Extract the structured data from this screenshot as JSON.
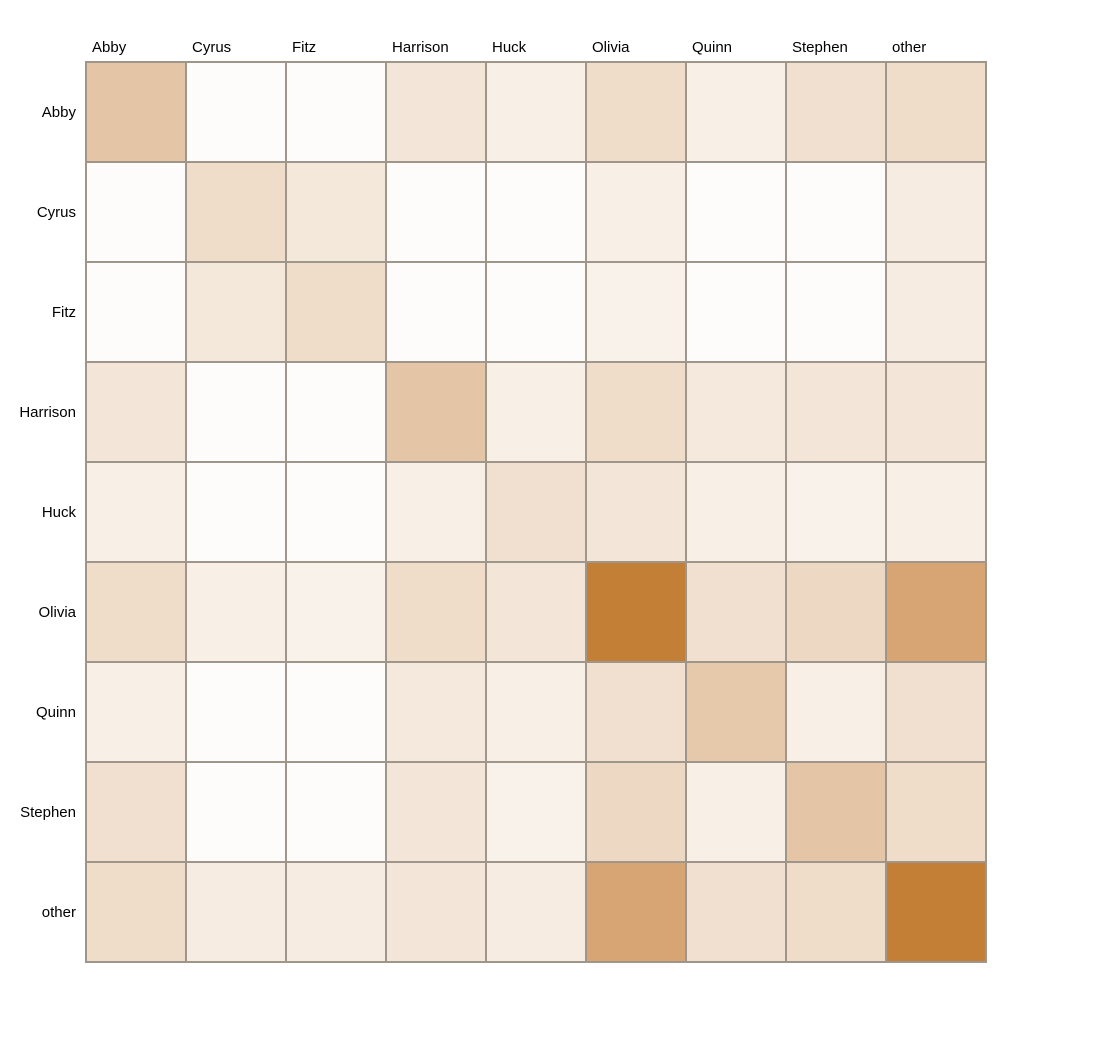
{
  "chart_data": {
    "type": "heatmap",
    "rows": [
      "Abby",
      "Cyrus",
      "Fitz",
      "Harrison",
      "Huck",
      "Olivia",
      "Quinn",
      "Stephen",
      "other"
    ],
    "columns": [
      "Abby",
      "Cyrus",
      "Fitz",
      "Harrison",
      "Huck",
      "Olivia",
      "Quinn",
      "Stephen",
      "other"
    ],
    "values": [
      [
        0.45,
        0.0,
        0.0,
        0.2,
        0.12,
        0.27,
        0.12,
        0.24,
        0.27
      ],
      [
        0.0,
        0.27,
        0.18,
        0.0,
        0.0,
        0.12,
        0.0,
        0.0,
        0.15
      ],
      [
        0.0,
        0.18,
        0.27,
        0.0,
        0.0,
        0.1,
        0.0,
        0.0,
        0.15
      ],
      [
        0.2,
        0.0,
        0.0,
        0.45,
        0.12,
        0.27,
        0.17,
        0.2,
        0.2
      ],
      [
        0.12,
        0.0,
        0.0,
        0.12,
        0.24,
        0.2,
        0.12,
        0.1,
        0.12
      ],
      [
        0.27,
        0.12,
        0.1,
        0.27,
        0.2,
        1.0,
        0.24,
        0.3,
        0.7
      ],
      [
        0.12,
        0.0,
        0.0,
        0.17,
        0.12,
        0.24,
        0.42,
        0.12,
        0.24
      ],
      [
        0.24,
        0.0,
        0.0,
        0.2,
        0.1,
        0.3,
        0.12,
        0.45,
        0.27
      ],
      [
        0.27,
        0.15,
        0.15,
        0.2,
        0.15,
        0.7,
        0.24,
        0.27,
        1.0
      ]
    ],
    "colors": {
      "low": "#ffffff",
      "high": "#c47f37",
      "grid": "#9e968b"
    },
    "title": "",
    "xlabel": "",
    "ylabel": "",
    "grid": true,
    "legend": "none"
  }
}
